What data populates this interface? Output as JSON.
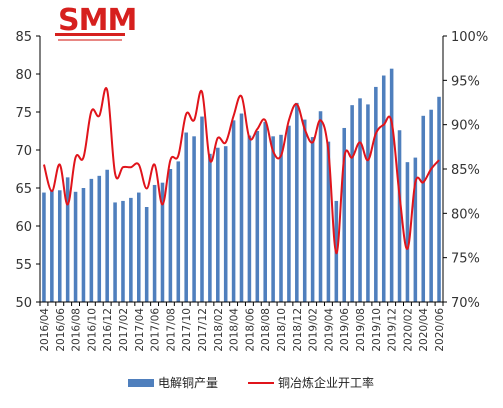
{
  "logo": {
    "text": "SMM",
    "color": "#d6201e"
  },
  "chart_data": {
    "type": "bar+line",
    "categories": [
      "2016/04",
      "2016/05",
      "2016/06",
      "2016/07",
      "2016/08",
      "2016/09",
      "2016/10",
      "2016/11",
      "2016/12",
      "2017/01",
      "2017/02",
      "2017/03",
      "2017/04",
      "2017/05",
      "2017/06",
      "2017/07",
      "2017/08",
      "2017/09",
      "2017/10",
      "2017/11",
      "2017/12",
      "2018/01",
      "2018/02",
      "2018/03",
      "2018/04",
      "2018/05",
      "2018/06",
      "2018/07",
      "2018/08",
      "2018/09",
      "2018/10",
      "2018/11",
      "2018/12",
      "2019/01",
      "2019/02",
      "2019/03",
      "2019/04",
      "2019/05",
      "2019/06",
      "2019/07",
      "2019/08",
      "2019/09",
      "2019/10",
      "2019/11",
      "2019/12",
      "2020/01",
      "2020/02",
      "2020/03",
      "2020/04",
      "2020/05",
      "2020/06"
    ],
    "x_tick_labels": [
      "2016/04",
      "2016/06",
      "2016/08",
      "2016/10",
      "2016/12",
      "2017/02",
      "2017/04",
      "2017/06",
      "2017/08",
      "2017/10",
      "2017/12",
      "2018/02",
      "2018/04",
      "2018/06",
      "2018/08",
      "2018/10",
      "2018/12",
      "2019/02",
      "2019/04",
      "2019/06",
      "2019/08",
      "2019/10",
      "2019/12",
      "2020/02",
      "2020/04",
      "2020/06"
    ],
    "series": [
      {
        "name": "电解铜产量",
        "type": "bar",
        "axis": "left",
        "color": "#4f7fbd",
        "values": [
          64.4,
          64.8,
          64.7,
          66.4,
          64.5,
          65.0,
          66.2,
          66.6,
          67.4,
          63.1,
          63.3,
          63.7,
          64.4,
          62.5,
          65.4,
          65.7,
          67.5,
          68.5,
          72.3,
          71.8,
          74.4,
          69.5,
          70.3,
          70.5,
          73.9,
          74.8,
          71.9,
          72.5,
          73.7,
          71.8,
          72.0,
          73.2,
          76.2,
          74.0,
          71.7,
          75.1,
          71.1,
          63.3,
          72.9,
          75.9,
          76.8,
          76.0,
          78.3,
          79.8,
          80.7,
          72.6,
          68.4,
          69.0,
          74.5,
          75.3,
          77.0
        ]
      },
      {
        "name": "铜冶炼企业开工率",
        "type": "line",
        "axis": "right",
        "color": "#e0141b",
        "values": [
          85.5,
          82.5,
          85.5,
          81.0,
          86.3,
          86.3,
          91.5,
          91.0,
          93.9,
          84.5,
          85.2,
          85.2,
          85.5,
          82.8,
          85.5,
          81.0,
          86.0,
          86.5,
          91.2,
          90.5,
          93.7,
          86.0,
          88.5,
          88.0,
          91.0,
          93.2,
          88.5,
          89.5,
          90.5,
          87.0,
          86.5,
          90.5,
          92.3,
          89.5,
          88.0,
          90.5,
          87.0,
          75.5,
          86.3,
          86.3,
          88.0,
          86.0,
          89.0,
          90.0,
          90.3,
          82.0,
          76.0,
          83.5,
          83.5,
          85.0,
          86.0
        ]
      }
    ],
    "y_left": {
      "min": 50,
      "max": 85,
      "ticks": [
        50,
        55,
        60,
        65,
        70,
        75,
        80,
        85
      ]
    },
    "y_right": {
      "min": 70,
      "max": 100,
      "ticks": [
        "70%",
        "75%",
        "80%",
        "85%",
        "90%",
        "95%",
        "100%"
      ]
    },
    "title": "",
    "xlabel": "",
    "ylabel_left": "",
    "ylabel_right": "",
    "grid": false,
    "legend": {
      "placement": "bottom",
      "items": [
        "电解铜产量",
        "铜冶炼企业开工率"
      ]
    }
  }
}
